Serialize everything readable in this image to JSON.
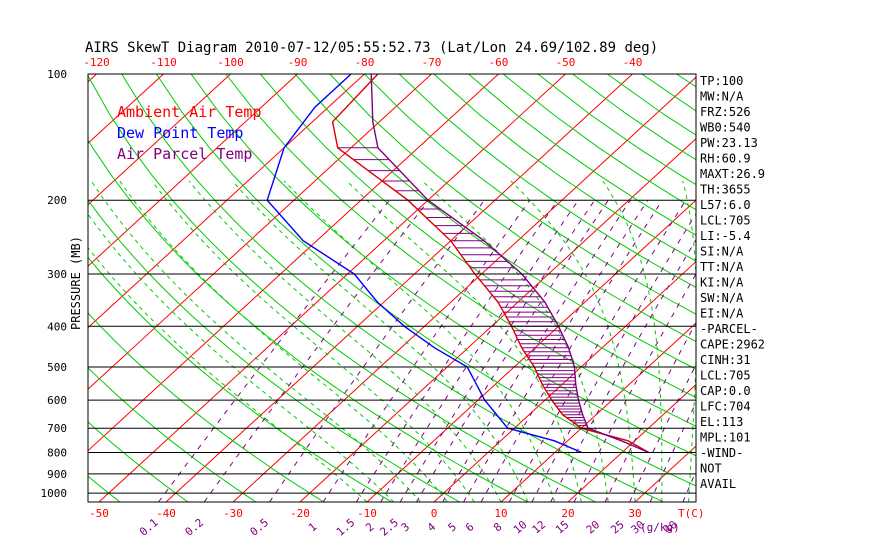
{
  "chart_data": {
    "type": "line",
    "title": "AIRS SkewT Diagram 2010-07-12/05:55:52.73 (Lat/Lon 24.69/102.89 deg)",
    "ylabel": "PRESSURE (MB)",
    "xlabel_bottom": "T(C)",
    "mixing_ratio_unit": "(g/kg)",
    "pressure_ticks": [
      100,
      200,
      300,
      400,
      500,
      600,
      700,
      800,
      900,
      1000
    ],
    "temp_ticks_bottom": [
      -50,
      -40,
      -30,
      -20,
      -10,
      0,
      10,
      20,
      30
    ],
    "temp_ticks_top": [
      -120,
      -110,
      -100,
      -90,
      -80,
      -70,
      -60,
      -50,
      -40
    ],
    "mixing_ratio_ticks": [
      "0.1",
      "0.2",
      "0.5",
      "1",
      "1.5",
      "2",
      "2.5",
      "3",
      "4",
      "5",
      "6",
      "8",
      "10",
      "12",
      "15",
      "20",
      "25",
      "30",
      "40"
    ],
    "legend": [
      {
        "label": "Ambient Air Temp",
        "color": "#ff0000"
      },
      {
        "label": "Dew Point Temp",
        "color": "#0000ff"
      },
      {
        "label": "Air Parcel Temp",
        "color": "#800080"
      }
    ],
    "series": [
      {
        "name": "Ambient Air Temp",
        "color": "#dd0000",
        "points": [
          {
            "p": 100,
            "t": -78
          },
          {
            "p": 130,
            "t": -77
          },
          {
            "p": 150,
            "t": -72
          },
          {
            "p": 200,
            "t": -53
          },
          {
            "p": 250,
            "t": -40
          },
          {
            "p": 300,
            "t": -31
          },
          {
            "p": 350,
            "t": -23
          },
          {
            "p": 400,
            "t": -17
          },
          {
            "p": 450,
            "t": -12
          },
          {
            "p": 500,
            "t": -7
          },
          {
            "p": 550,
            "t": -3
          },
          {
            "p": 600,
            "t": 1
          },
          {
            "p": 650,
            "t": 5
          },
          {
            "p": 700,
            "t": 10
          },
          {
            "p": 750,
            "t": 19
          },
          {
            "p": 800,
            "t": 24
          }
        ]
      },
      {
        "name": "Dew Point Temp",
        "color": "#0000ff",
        "points": [
          {
            "p": 100,
            "t": -82
          },
          {
            "p": 120,
            "t": -82
          },
          {
            "p": 150,
            "t": -80
          },
          {
            "p": 200,
            "t": -74
          },
          {
            "p": 250,
            "t": -62
          },
          {
            "p": 300,
            "t": -49
          },
          {
            "p": 350,
            "t": -41
          },
          {
            "p": 400,
            "t": -33
          },
          {
            "p": 450,
            "t": -25
          },
          {
            "p": 500,
            "t": -17
          },
          {
            "p": 600,
            "t": -9
          },
          {
            "p": 700,
            "t": -1
          },
          {
            "p": 750,
            "t": 8
          },
          {
            "p": 800,
            "t": 14
          }
        ]
      },
      {
        "name": "Air Parcel Temp",
        "color": "#800080",
        "points": [
          {
            "p": 100,
            "t": -79
          },
          {
            "p": 130,
            "t": -71
          },
          {
            "p": 150,
            "t": -66
          },
          {
            "p": 200,
            "t": -50
          },
          {
            "p": 250,
            "t": -35
          },
          {
            "p": 300,
            "t": -24
          },
          {
            "p": 350,
            "t": -16
          },
          {
            "p": 400,
            "t": -10
          },
          {
            "p": 450,
            "t": -5
          },
          {
            "p": 500,
            "t": -1
          },
          {
            "p": 550,
            "t": 2
          },
          {
            "p": 600,
            "t": 5
          },
          {
            "p": 650,
            "t": 8
          },
          {
            "p": 700,
            "t": 11
          },
          {
            "p": 750,
            "t": 18
          },
          {
            "p": 800,
            "t": 24
          }
        ]
      }
    ],
    "indices": [
      "TP:100",
      "MW:N/A",
      "FRZ:526",
      "WB0:540",
      "PW:23.13",
      "RH:60.9",
      "MAXT:26.9",
      "TH:3655",
      "L57:6.0",
      "LCL:705",
      "LI:-5.4",
      "SI:N/A",
      "TT:N/A",
      "KI:N/A",
      "SW:N/A",
      "EI:N/A",
      "-PARCEL-",
      "CAPE:2962",
      "CINH:31",
      "LCL:705",
      "CAP:0.0",
      "LFC:704",
      "EL:113",
      "MPL:101",
      "-WIND-",
      "NOT",
      "AVAIL"
    ]
  },
  "colors": {
    "isotherm": "#ff0000",
    "dry_adiabat": "#00cc00",
    "moist_adiabat": "#00cc00",
    "mixing_ratio": "#800080",
    "frame": "#000000",
    "tick_label": "#ff0000",
    "mixing_label": "#800080",
    "hatch": "#800080"
  }
}
